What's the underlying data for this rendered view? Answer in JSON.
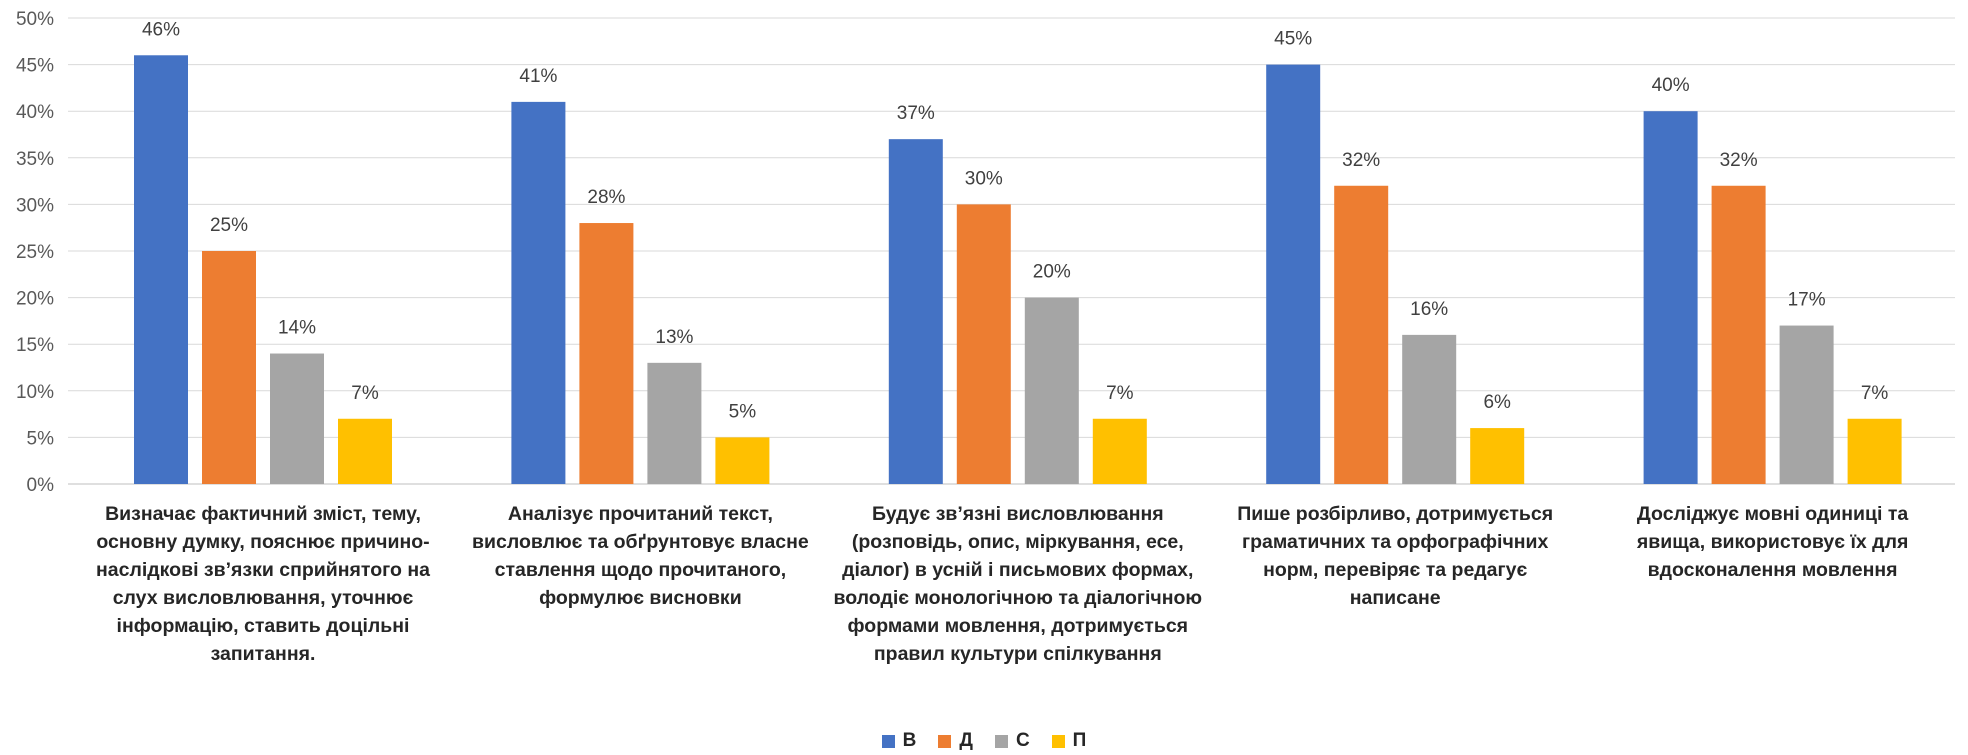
{
  "chart_data": {
    "type": "bar",
    "categories": [
      "Визначає фактичний зміст, тему, основну думку, пояснює причино-наслідкові зв’язки сприйнятого на слух висловлювання, уточнює інформацію, ставить доцільні запитання.",
      "Аналізує прочитаний текст, висловлює та обґрунтовує власне ставлення щодо прочитаного, формулює висновки",
      "Будує зв’язні висловлювання (розповідь, опис, міркування, есе, діалог) в усній і письмових формах, володіє монологічною та діалогічною формами мовлення, дотримується правил культури спілкування",
      "Пише розбірливо, дотримується граматичних та орфографічних норм, перевіряє та редагує написане",
      "Досліджує мовні одиниці та явища, використовує їх для вдосконалення мовлення"
    ],
    "series": [
      {
        "name": "В",
        "color": "#4472C4",
        "values": [
          46,
          41,
          37,
          45,
          40
        ]
      },
      {
        "name": "Д",
        "color": "#ED7D31",
        "values": [
          25,
          28,
          30,
          32,
          32
        ]
      },
      {
        "name": "С",
        "color": "#A5A5A5",
        "values": [
          14,
          13,
          20,
          16,
          17
        ]
      },
      {
        "name": "П",
        "color": "#FFC000",
        "values": [
          7,
          5,
          7,
          6,
          7
        ]
      }
    ],
    "y_ticks": [
      "0%",
      "5%",
      "10%",
      "15%",
      "20%",
      "25%",
      "30%",
      "35%",
      "40%",
      "45%",
      "50%"
    ],
    "data_labels": [
      [
        "46%",
        "41%",
        "37%",
        "45%",
        "40%"
      ],
      [
        "25%",
        "28%",
        "30%",
        "32%",
        "32%"
      ],
      [
        "14%",
        "13%",
        "20%",
        "16%",
        "17%"
      ],
      [
        "7%",
        "5%",
        "7%",
        "6%",
        "7%"
      ]
    ],
    "ylim": [
      0,
      50
    ],
    "unit": "%",
    "grid": true,
    "legend_position": "bottom",
    "title": "",
    "xlabel": "",
    "ylabel": ""
  }
}
